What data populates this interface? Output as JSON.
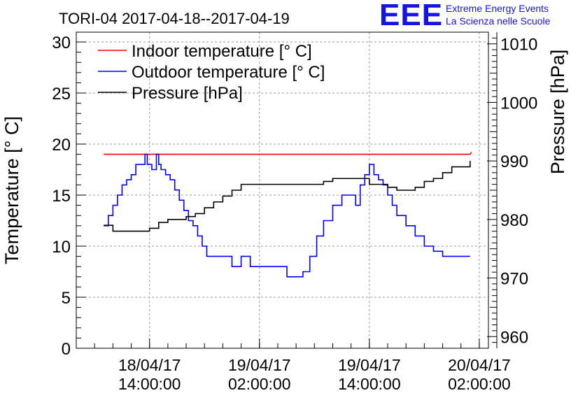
{
  "title": "TORI-04 2017-04-18--2017-04-19",
  "logo": {
    "mark": "EEE",
    "line1": "Extreme Energy Events",
    "line2": "La Scienza nelle Scuole"
  },
  "colors": {
    "indoor": "#ff0000",
    "outdoor": "#0000ff",
    "pressure": "#000000",
    "logo": "#1414e6"
  },
  "chart_data": {
    "type": "line",
    "title": "TORI-04 2017-04-18--2017-04-19",
    "ylabel": "Temperature [° C]",
    "y2label": "Pressure [hPa]",
    "x_range": [
      "2017-04-18 06:00",
      "2017-04-20 03:00"
    ],
    "ylim": [
      0,
      30
    ],
    "y2lim": [
      958,
      1012
    ],
    "yticks": [
      "0",
      "5",
      "10",
      "15",
      "20",
      "25",
      "30"
    ],
    "y2ticks": [
      "960",
      "970",
      "980",
      "990",
      "1000",
      "1010"
    ],
    "xticks": [
      {
        "line1": "18/04/17",
        "line2": "14:00:00",
        "t": "2017-04-18 14:00"
      },
      {
        "line1": "19/04/17",
        "line2": "02:00:00",
        "t": "2017-04-19 02:00"
      },
      {
        "line1": "19/04/17",
        "line2": "14:00:00",
        "t": "2017-04-19 14:00"
      },
      {
        "line1": "20/04/17",
        "line2": "02:00:00",
        "t": "2017-04-20 02:00"
      }
    ],
    "grid": true,
    "legend_position": "top-left",
    "series": [
      {
        "name": "Indoor temperature [° C]",
        "axis": "left",
        "x": [
          "2017-04-18 09:00",
          "2017-04-20 01:00"
        ],
        "y": [
          19,
          19.2
        ]
      },
      {
        "name": "Outdoor temperature [° C]",
        "axis": "left",
        "x": [
          "2017-04-18 09:00",
          "2017-04-18 09:30",
          "2017-04-18 10:00",
          "2017-04-18 10:30",
          "2017-04-18 11:00",
          "2017-04-18 11:30",
          "2017-04-18 12:00",
          "2017-04-18 12:30",
          "2017-04-18 13:00",
          "2017-04-18 13:30",
          "2017-04-18 13:45",
          "2017-04-18 14:15",
          "2017-04-18 14:45",
          "2017-04-18 15:00",
          "2017-04-18 15:15",
          "2017-04-18 15:45",
          "2017-04-18 16:15",
          "2017-04-18 16:45",
          "2017-04-18 17:15",
          "2017-04-18 17:45",
          "2017-04-18 18:15",
          "2017-04-18 18:45",
          "2017-04-18 19:15",
          "2017-04-18 19:45",
          "2017-04-18 20:15",
          "2017-04-18 21:00",
          "2017-04-18 22:00",
          "2017-04-18 23:00",
          "2017-04-19 00:00",
          "2017-04-19 01:00",
          "2017-04-19 01:15",
          "2017-04-19 02:00",
          "2017-04-19 03:00",
          "2017-04-19 04:00",
          "2017-04-19 05:00",
          "2017-04-19 06:00",
          "2017-04-19 06:45",
          "2017-04-19 07:30",
          "2017-04-19 08:15",
          "2017-04-19 09:00",
          "2017-04-19 10:00",
          "2017-04-19 11:00",
          "2017-04-19 12:00",
          "2017-04-19 12:30",
          "2017-04-19 13:00",
          "2017-04-19 13:30",
          "2017-04-19 14:00",
          "2017-04-19 14:30",
          "2017-04-19 15:00",
          "2017-04-19 15:30",
          "2017-04-19 16:00",
          "2017-04-19 16:30",
          "2017-04-19 17:00",
          "2017-04-19 18:00",
          "2017-04-19 19:00",
          "2017-04-19 20:00",
          "2017-04-19 21:00",
          "2017-04-19 22:00",
          "2017-04-19 23:00",
          "2017-04-20 00:00",
          "2017-04-20 01:00"
        ],
        "y": [
          12,
          13,
          14,
          15,
          16,
          16.5,
          17,
          18,
          18,
          19,
          18,
          17.5,
          19,
          18,
          17.5,
          17,
          16.5,
          15.5,
          14.5,
          13.5,
          12.5,
          12,
          11,
          10,
          9,
          9,
          9,
          8,
          9,
          8,
          8,
          8,
          8,
          8,
          7,
          7,
          7.5,
          9,
          11,
          12.5,
          14,
          15,
          15,
          14,
          16,
          17,
          18,
          17,
          16.5,
          16,
          15,
          14,
          13,
          12,
          11,
          10,
          9.5,
          9,
          9,
          9,
          9
        ]
      },
      {
        "name": "Pressure [hPa]",
        "axis": "right",
        "x": [
          "2017-04-18 09:00",
          "2017-04-18 10:00",
          "2017-04-18 11:00",
          "2017-04-18 12:00",
          "2017-04-18 13:00",
          "2017-04-18 14:00",
          "2017-04-18 15:00",
          "2017-04-18 16:00",
          "2017-04-18 17:00",
          "2017-04-18 18:00",
          "2017-04-18 19:00",
          "2017-04-18 20:00",
          "2017-04-18 21:00",
          "2017-04-18 22:00",
          "2017-04-18 23:00",
          "2017-04-19 00:00",
          "2017-04-19 01:00",
          "2017-04-19 02:00",
          "2017-04-19 03:00",
          "2017-04-19 04:00",
          "2017-04-19 05:00",
          "2017-04-19 06:00",
          "2017-04-19 07:00",
          "2017-04-19 08:00",
          "2017-04-19 09:00",
          "2017-04-19 10:00",
          "2017-04-19 11:00",
          "2017-04-19 12:00",
          "2017-04-19 13:00",
          "2017-04-19 14:00",
          "2017-04-19 15:00",
          "2017-04-19 16:00",
          "2017-04-19 17:00",
          "2017-04-19 18:00",
          "2017-04-19 19:00",
          "2017-04-19 20:00",
          "2017-04-19 21:00",
          "2017-04-19 22:00",
          "2017-04-19 23:00",
          "2017-04-20 00:00",
          "2017-04-20 01:00"
        ],
        "y": [
          979,
          978,
          978,
          978,
          978,
          978.5,
          979.5,
          980,
          980,
          980.5,
          981,
          982,
          983,
          984,
          985,
          986,
          986,
          986,
          986,
          986,
          986,
          986,
          986,
          986,
          986.5,
          987,
          987,
          987,
          987,
          986,
          986,
          985.5,
          985,
          985,
          985.5,
          986.5,
          987,
          988,
          989,
          989,
          990
        ]
      }
    ]
  }
}
